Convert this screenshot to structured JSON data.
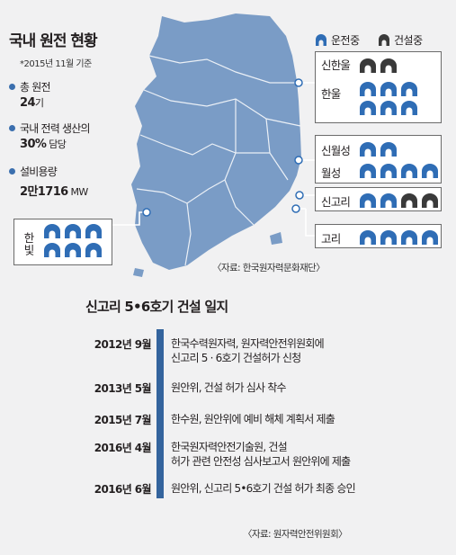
{
  "header": {
    "title": "국내 원전 현황",
    "note": "*2015년 11월 기준"
  },
  "stats": [
    {
      "label": "총 원전",
      "value": "24",
      "unit": "기"
    },
    {
      "label": "국내 전력 생산의",
      "value": "30%",
      "unit": " 담당"
    },
    {
      "label": "설비용량",
      "value": "2만1716",
      "unit": " MW"
    }
  ],
  "legend": {
    "operating": "운전중",
    "construction": "건설중"
  },
  "colors": {
    "map": "#7a9cc6",
    "operating": "#2f6db5",
    "construction": "#3a3a3a",
    "timeline_bar": "#34649d"
  },
  "plants": [
    {
      "name": "신한울",
      "operating": 0,
      "construction": 2
    },
    {
      "name": "한울",
      "operating": 6,
      "construction": 0
    },
    {
      "name": "신월성",
      "operating": 2,
      "construction": 0
    },
    {
      "name": "월성",
      "operating": 4,
      "construction": 0
    },
    {
      "name": "신고리",
      "operating": 2,
      "construction": 2
    },
    {
      "name": "고리",
      "operating": 4,
      "construction": 0
    },
    {
      "name": "한빛",
      "operating": 6,
      "construction": 0
    }
  ],
  "map_source": "〈자료: 한국원자력문화재단〉",
  "timeline": {
    "title": "신고리 5•6호기 건설 일지",
    "events": [
      {
        "date": "2012년 9월",
        "line1": "한국수력원자력, 원자력안전위원회에",
        "line2": "신고리 5 · 6호기 건설허가 신청"
      },
      {
        "date": "2013년 5월",
        "line1": "원안위, 건설 허가 심사 착수",
        "line2": ""
      },
      {
        "date": "2015년 7월",
        "line1": "한수원, 원안위에 예비 해체 계획서 제출",
        "line2": ""
      },
      {
        "date": "2016년 4월",
        "line1": "한국원자력안전기술원, 건설",
        "line2": "허가 관련 안전성 심사보고서 원안위에 제출"
      },
      {
        "date": "2016년 6월",
        "line1": "원안위, 신고리 5•6호기 건설 허가 최종 승인",
        "line2": ""
      }
    ]
  },
  "timeline_source": "〈자료: 원자력안전위원회〉"
}
